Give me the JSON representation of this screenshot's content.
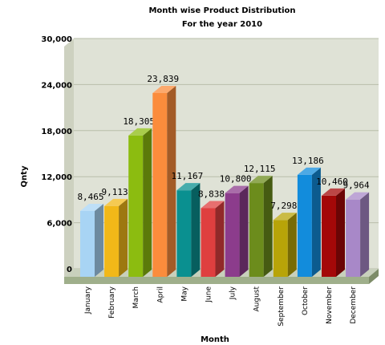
{
  "chart_data": {
    "type": "bar",
    "title": "Month wise Product Distribution",
    "subtitle": "For the year 2010",
    "xlabel": "Month",
    "ylabel": "Qnty",
    "ylim": [
      0,
      30000
    ],
    "yticks": [
      "0",
      "6,000",
      "12,000",
      "18,000",
      "24,000",
      "30,000"
    ],
    "ytick_values": [
      0,
      6000,
      12000,
      18000,
      24000,
      30000
    ],
    "categories": [
      "January",
      "February",
      "March",
      "April",
      "May",
      "June",
      "July",
      "August",
      "September",
      "October",
      "November",
      "December"
    ],
    "values": [
      8465,
      9113,
      18305,
      23839,
      11167,
      8838,
      10800,
      12115,
      7298,
      13186,
      10460,
      9964
    ],
    "value_labels": [
      "8,465",
      "9,113",
      "18,305",
      "23,839",
      "11,167",
      "8,838",
      "10,800",
      "12,115",
      "7,298",
      "13,186",
      "10,460",
      "9,964"
    ],
    "colors": [
      "#a8d4f4",
      "#f2b818",
      "#8cbc10",
      "#fb8c3c",
      "#0a9090",
      "#df3f3f",
      "#8c3c8c",
      "#6c8c1c",
      "#b8a408",
      "#128cdc",
      "#a40808",
      "#a888c8"
    ],
    "grid": true,
    "legend": "none",
    "style": "3d"
  }
}
